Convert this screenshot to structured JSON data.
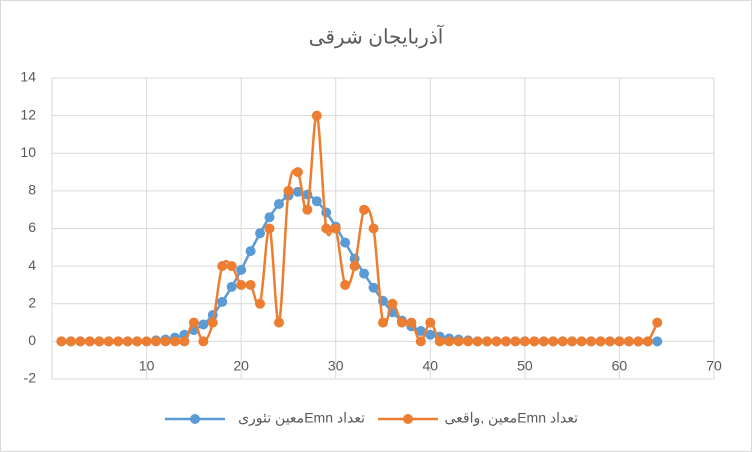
{
  "chart_data": {
    "type": "scatter-line",
    "title": "آذربایجان شرقی",
    "x": [
      1,
      2,
      3,
      4,
      5,
      6,
      7,
      8,
      9,
      10,
      11,
      12,
      13,
      14,
      15,
      16,
      17,
      18,
      19,
      20,
      21,
      22,
      23,
      24,
      25,
      26,
      27,
      28,
      29,
      30,
      31,
      32,
      33,
      34,
      35,
      36,
      37,
      38,
      39,
      40,
      41,
      42,
      43,
      44,
      45,
      46,
      47,
      48,
      49,
      50,
      51,
      52,
      53,
      54,
      55,
      56,
      57,
      58,
      59,
      60,
      61,
      62,
      63,
      64
    ],
    "series": [
      {
        "name": "تعداد Emnمعین تئوری",
        "color": "#5b9bd5",
        "values": [
          0,
          0,
          0,
          0,
          0,
          0,
          0,
          0,
          0,
          0,
          0.05,
          0.1,
          0.2,
          0.35,
          0.6,
          0.9,
          1.4,
          2.1,
          2.9,
          3.8,
          4.8,
          5.75,
          6.6,
          7.3,
          7.75,
          7.95,
          7.8,
          7.45,
          6.85,
          6.1,
          5.25,
          4.4,
          3.6,
          2.85,
          2.15,
          1.55,
          1.1,
          0.8,
          0.55,
          0.35,
          0.25,
          0.15,
          0.1,
          0.05,
          0,
          0,
          0,
          0,
          0,
          0,
          0,
          0,
          0,
          0,
          0,
          0,
          0,
          0,
          0,
          0,
          0,
          0,
          0,
          0
        ]
      },
      {
        "name": "تعداد Emnمعین ,واقعی",
        "color": "#ed7d31",
        "values": [
          0,
          0,
          0,
          0,
          0,
          0,
          0,
          0,
          0,
          0,
          0,
          0,
          0,
          0,
          1,
          0,
          1,
          4,
          4,
          3,
          3,
          2,
          6,
          1,
          8,
          9,
          7,
          12,
          6,
          6,
          3,
          4,
          7,
          6,
          1,
          2,
          1,
          1,
          0,
          1,
          0,
          0,
          0,
          0,
          0,
          0,
          0,
          0,
          0,
          0,
          0,
          0,
          0,
          0,
          0,
          0,
          0,
          0,
          0,
          0,
          0,
          0,
          0,
          1
        ]
      }
    ],
    "xlim": [
      0,
      70
    ],
    "xticks": [
      10,
      20,
      30,
      40,
      50,
      60,
      70
    ],
    "ylim": [
      -2,
      14
    ],
    "yticks": [
      -2,
      0,
      2,
      4,
      6,
      8,
      10,
      12,
      14
    ],
    "grid": true,
    "legend": "bottom"
  }
}
